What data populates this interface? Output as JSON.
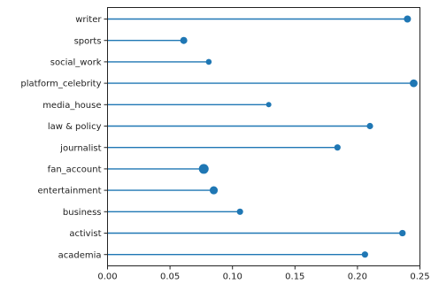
{
  "chart_data": {
    "type": "lollipop",
    "orientation": "horizontal",
    "categories": [
      "writer",
      "sports",
      "social_work",
      "platform_celebrity",
      "media_house",
      "law & policy",
      "journalist",
      "fan_account",
      "entertainment",
      "business",
      "activist",
      "academia"
    ],
    "values": [
      0.24,
      0.061,
      0.081,
      0.245,
      0.129,
      0.21,
      0.184,
      0.077,
      0.085,
      0.106,
      0.236,
      0.206
    ],
    "marker_weight": [
      1.2,
      1.2,
      0.6,
      1.6,
      0.4,
      0.8,
      0.8,
      3.2,
      1.8,
      0.8,
      0.9,
      0.8
    ],
    "xlim": [
      0,
      0.25
    ],
    "xticks": [
      0.0,
      0.05,
      0.1,
      0.15,
      0.2,
      0.25
    ],
    "xtick_labels": [
      "0.00",
      "0.05",
      "0.10",
      "0.15",
      "0.20",
      "0.25"
    ],
    "color": "#1f77b4",
    "grid": false,
    "legend": "none"
  }
}
